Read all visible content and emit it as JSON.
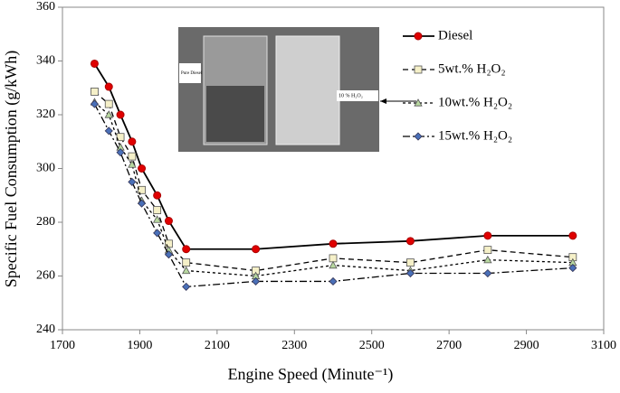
{
  "chart_data": {
    "type": "line",
    "x_label": "Engine Speed (Minute⁻¹)",
    "y_label": "Specific Fuel Consumption (g/kWh)",
    "xlim": [
      1700,
      3100
    ],
    "xticks": [
      1700,
      1900,
      2100,
      2300,
      2500,
      2700,
      2900,
      3100
    ],
    "ylim": [
      240,
      360
    ],
    "yticks": [
      240,
      260,
      280,
      300,
      320,
      340,
      360
    ],
    "inset_labels": [
      "Pure Diesel",
      "10 % H₂O₂"
    ],
    "series": [
      {
        "name": "Diesel",
        "color": "#e00000",
        "marker": "circle",
        "dash": "none",
        "x": [
          1783,
          1820,
          1850,
          1880,
          1905,
          1945,
          1975,
          2020,
          2200,
          2400,
          2600,
          2800,
          3020
        ],
        "values": [
          339,
          330.4,
          320,
          310,
          300,
          290,
          280.5,
          270,
          270,
          272,
          273,
          275,
          275
        ]
      },
      {
        "name": "5wt.% H₂O₂",
        "color": "#f5f0c8",
        "marker": "square",
        "dash": "6,4",
        "x": [
          1783,
          1820,
          1850,
          1880,
          1905,
          1945,
          1975,
          2020,
          2200,
          2400,
          2600,
          2800,
          3020
        ],
        "values": [
          328.6,
          324,
          311.7,
          304.5,
          292,
          284.5,
          272,
          265,
          262,
          266.6,
          265,
          269.7,
          267
        ]
      },
      {
        "name": "10wt.% H₂O₂",
        "color": "#b8d8a0",
        "marker": "triangle",
        "dash": "3,3",
        "x": [
          1783,
          1820,
          1850,
          1880,
          1905,
          1945,
          1975,
          2020,
          2200,
          2400,
          2600,
          2800,
          3020
        ],
        "values": [
          324.7,
          320,
          307.9,
          301.5,
          288,
          281,
          269.6,
          262,
          260,
          264,
          262,
          266,
          265
        ]
      },
      {
        "name": "15wt.% H₂O₂",
        "color": "#4a70b8",
        "marker": "diamond",
        "dash": "8,3,2,3",
        "x": [
          1783,
          1820,
          1850,
          1880,
          1905,
          1945,
          1975,
          2020,
          2200,
          2400,
          2600,
          2800,
          3020
        ],
        "values": [
          324,
          314,
          306,
          295,
          287,
          276,
          268,
          256,
          258,
          258,
          261,
          261,
          263
        ]
      }
    ]
  }
}
